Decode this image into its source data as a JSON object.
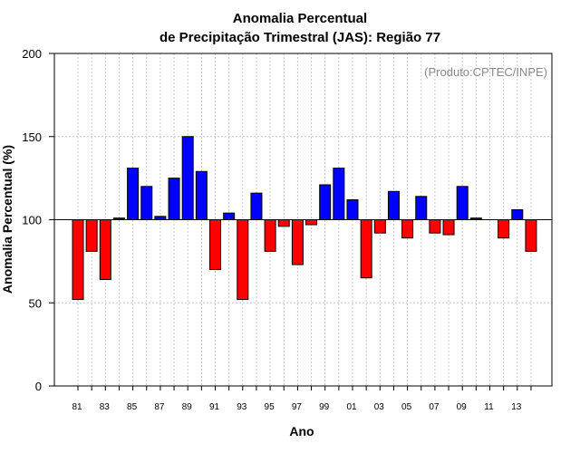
{
  "chart_data": {
    "type": "bar",
    "title_line1": "Anomalia Percentual",
    "title_line2": "de Precipitação Trimestral (JAS): Região 77",
    "source_note": "(Produto:CPTEC/INPE)",
    "xlabel": "Ano",
    "ylabel": "Anomalia Percentual (%)",
    "ylim": [
      0,
      200
    ],
    "yticks": [
      "0",
      "50",
      "100",
      "150",
      "200"
    ],
    "baseline": 100,
    "grid": true,
    "categories": [
      "81",
      "82",
      "83",
      "84",
      "85",
      "86",
      "87",
      "88",
      "89",
      "90",
      "91",
      "92",
      "93",
      "94",
      "95",
      "96",
      "97",
      "98",
      "99",
      "00",
      "01",
      "02",
      "03",
      "04",
      "05",
      "06",
      "07",
      "08",
      "09",
      "10",
      "11",
      "12",
      "13",
      "14"
    ],
    "tick_labels": [
      "81",
      "83",
      "85",
      "87",
      "89",
      "91",
      "93",
      "95",
      "97",
      "99",
      "01",
      "03",
      "05",
      "07",
      "09",
      "11",
      "13"
    ],
    "values": [
      52,
      81,
      64,
      101,
      131,
      120,
      102,
      125,
      150,
      129,
      70,
      104,
      52,
      116,
      81,
      96,
      73,
      97,
      121,
      131,
      112,
      65,
      92,
      117,
      89,
      114,
      92,
      91,
      120,
      101,
      100,
      89,
      106,
      81
    ],
    "colors": {
      "above": "#0000ff",
      "below": "#ff0000",
      "edge": "#000000",
      "grid": "#c8c8c8"
    }
  }
}
